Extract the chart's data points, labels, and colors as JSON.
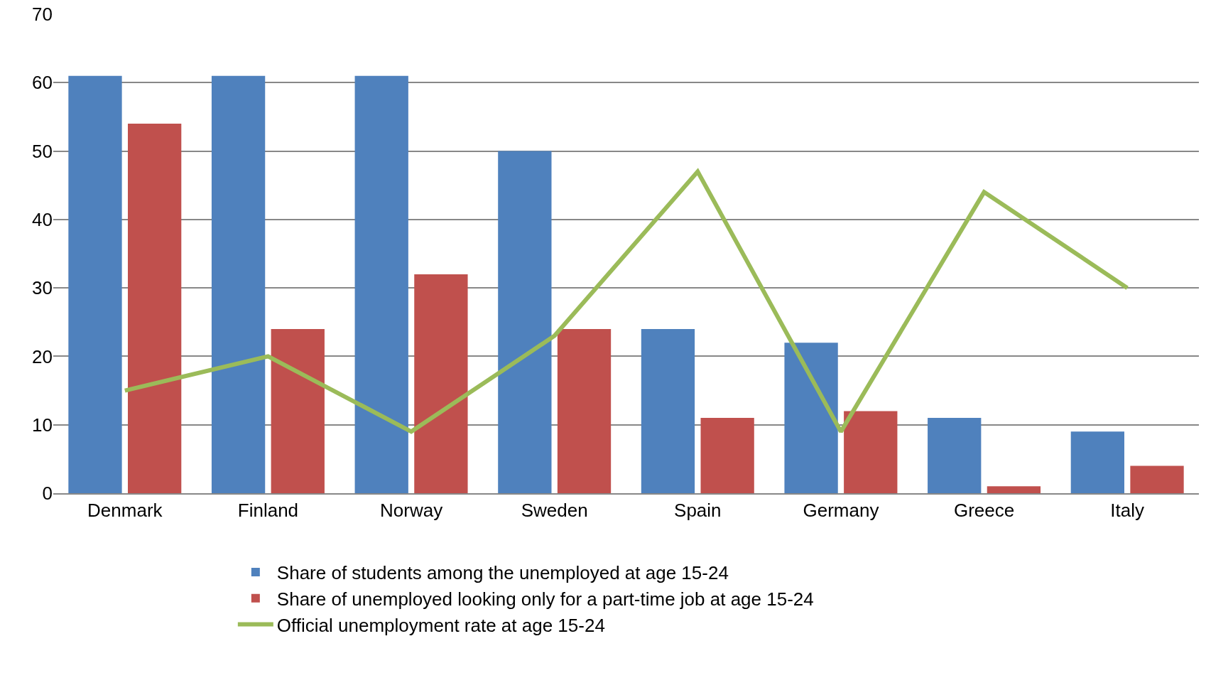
{
  "chart_data": {
    "type": "bar",
    "categories": [
      "Denmark",
      "Finland",
      "Norway",
      "Sweden",
      "Spain",
      "Germany",
      "Greece",
      "Italy"
    ],
    "series": [
      {
        "name": "Share of students among the unemployed at age 15-24",
        "color": "#4f81bd",
        "values": [
          61,
          61,
          61,
          50,
          24,
          22,
          11,
          9
        ]
      },
      {
        "name": "Share of unemployed looking only for a part-time job at age 15-24",
        "color": "#c0504d",
        "values": [
          54,
          24,
          32,
          24,
          11,
          12,
          1,
          4
        ]
      },
      {
        "name": "Official unemployment rate at age 15-24",
        "type": "line",
        "color": "#9bbb59",
        "values": [
          15,
          20,
          9,
          23,
          47,
          9,
          44,
          30
        ]
      }
    ],
    "ylim": [
      0,
      70
    ],
    "yticks": [
      0,
      10,
      20,
      30,
      40,
      50,
      60,
      70
    ],
    "grid": "y",
    "legend": "bottom",
    "marker": "none",
    "line_style": "solid"
  }
}
